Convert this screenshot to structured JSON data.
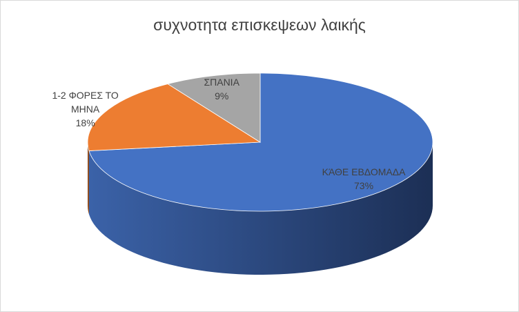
{
  "chart_data": {
    "type": "pie3d",
    "title": "συχνοτητα επισκεψεων λαικής",
    "categories": [
      "ΚΆΘΕ ΕΒΔΟΜΑΔΑ",
      "1-2 ΦΟΡΕΣ ΤΟ ΜΗΝΑ",
      "ΣΠΑΝΙΑ"
    ],
    "values": [
      73,
      18,
      9
    ],
    "value_labels": [
      "73%",
      "18%",
      "9%"
    ],
    "colors": [
      "#4472c4",
      "#ed7d31",
      "#a5a5a5"
    ]
  }
}
